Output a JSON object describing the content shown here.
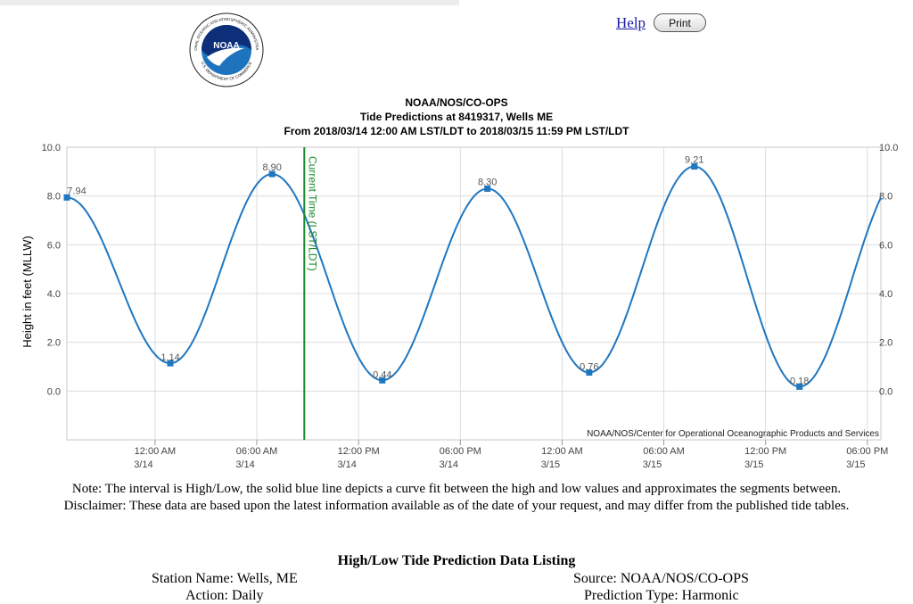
{
  "header": {
    "help_label": "Help",
    "print_label": "Print",
    "logo_text": "NOAA",
    "logo_ring_text": "NATIONAL OCEANIC AND ATMOSPHERIC ADMINISTRATION",
    "logo_bottom_text": "U.S. DEPARTMENT OF COMMERCE"
  },
  "chart_data": {
    "type": "line",
    "title": "NOAA/NOS/CO-OPS",
    "subtitle": "Tide Predictions at 8419317, Wells ME",
    "subtitle2": "From 2018/03/14 12:00 AM LST/LDT to 2018/03/15 11:59 PM LST/LDT",
    "ylabel": "Height in feet (MLLW)",
    "ylim": [
      -2,
      10
    ],
    "xlim_hours": [
      -5.2,
      42.8
    ],
    "yticks": [
      "10.0",
      "8.0",
      "6.0",
      "4.0",
      "2.0",
      "0.0"
    ],
    "ytick_values": [
      10,
      8,
      6,
      4,
      2,
      0
    ],
    "xticks": [
      {
        "hour": 0,
        "time": "12:00 AM",
        "date": "3/14"
      },
      {
        "hour": 6,
        "time": "06:00 AM",
        "date": "3/14"
      },
      {
        "hour": 12,
        "time": "12:00 PM",
        "date": "3/14"
      },
      {
        "hour": 18,
        "time": "06:00 PM",
        "date": "3/14"
      },
      {
        "hour": 24,
        "time": "12:00 AM",
        "date": "3/15"
      },
      {
        "hour": 30,
        "time": "06:00 AM",
        "date": "3/15"
      },
      {
        "hour": 36,
        "time": "12:00 PM",
        "date": "3/15"
      },
      {
        "hour": 42,
        "time": "06:00 PM",
        "date": "3/15"
      }
    ],
    "series": [
      {
        "points": [
          {
            "hour": -5.2,
            "value": 7.94,
            "label": "7.94"
          },
          {
            "hour": 0.9,
            "value": 1.14,
            "label": "1.14"
          },
          {
            "hour": 6.9,
            "value": 8.9,
            "label": "8.90"
          },
          {
            "hour": 13.4,
            "value": 0.44,
            "label": "0.44"
          },
          {
            "hour": 19.6,
            "value": 8.3,
            "label": "8.30"
          },
          {
            "hour": 25.6,
            "value": 0.76,
            "label": "0.76"
          },
          {
            "hour": 31.8,
            "value": 9.21,
            "label": "9.21"
          },
          {
            "hour": 38.0,
            "value": 0.18,
            "label": "0.18"
          }
        ],
        "end_point": {
          "hour": 42.8,
          "value": 7.65
        },
        "color": "#1f77c0"
      }
    ],
    "current_time": {
      "hour": 8.8,
      "label": "Current Time (LST/LDT)",
      "color": "#1a8a2e"
    },
    "credit": "NOAA/NOS/Center for Operational Oceanographic Products and Services",
    "grid": true
  },
  "notes": {
    "line1": "Note: The interval is High/Low, the solid blue line depicts a curve fit between the high and low values and approximates the segments between.",
    "line2": "Disclaimer: These data are based upon the latest information available as of the date of your request, and may differ from the published tide tables."
  },
  "listing": {
    "title": "High/Low Tide Prediction Data Listing",
    "station_name": "Station Name: Wells, ME",
    "action": "Action: Daily",
    "source": "Source: NOAA/NOS/CO-OPS",
    "prediction_type": "Prediction Type: Harmonic"
  }
}
